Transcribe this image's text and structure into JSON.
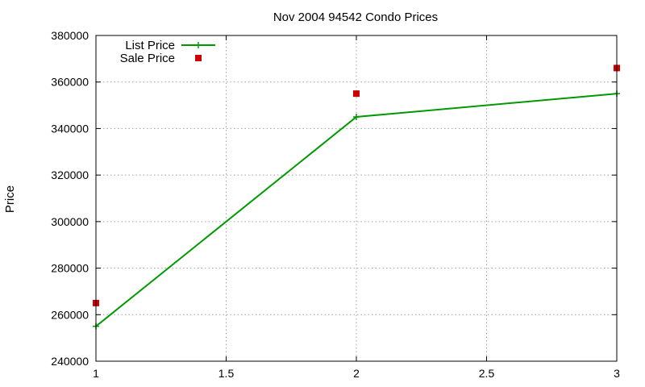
{
  "chart_data": {
    "type": "line",
    "title": "Nov 2004 94542 Condo Prices",
    "xlabel": "",
    "ylabel": "Price",
    "x": [
      1,
      2,
      3
    ],
    "xlim": [
      1,
      3
    ],
    "ylim": [
      240000,
      380000
    ],
    "x_ticks": [
      1,
      1.5,
      2,
      2.5,
      3
    ],
    "y_ticks": [
      240000,
      260000,
      280000,
      300000,
      320000,
      340000,
      360000,
      380000
    ],
    "grid": true,
    "legend_position": "top-left",
    "series": [
      {
        "name": "List Price",
        "style": "line+cross",
        "color": "#009900",
        "values": [
          255000,
          345000,
          355000
        ]
      },
      {
        "name": "Sale Price",
        "style": "square-points",
        "color": "#cc0000",
        "values": [
          265000,
          355000,
          366000
        ]
      }
    ]
  }
}
